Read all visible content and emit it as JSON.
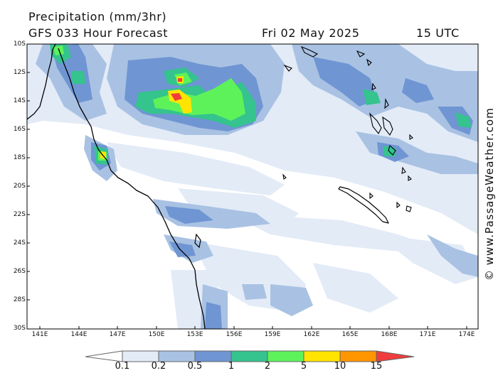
{
  "header": {
    "title": "Precipitation (mm/3hr)",
    "subtitle": "GFS 033 Hour Forecast",
    "date": "Fri 02 May 2025",
    "time": "15 UTC"
  },
  "credit": "© www.PassageWeather.com",
  "axes": {
    "lat_labels": [
      "10S",
      "12S",
      "14S",
      "16S",
      "18S",
      "20S",
      "22S",
      "24S",
      "26S",
      "28S",
      "30S"
    ],
    "lon_labels": [
      "141E",
      "144E",
      "147E",
      "150E",
      "153E",
      "156E",
      "159E",
      "162E",
      "165E",
      "168E",
      "171E",
      "174E"
    ]
  },
  "legend": {
    "labels": [
      "0.1",
      "0.2",
      "0.5",
      "1",
      "2",
      "5",
      "10",
      "15"
    ],
    "colors": [
      "#ffffff",
      "#e3ebf7",
      "#a9c2e3",
      "#6f95d3",
      "#35c38e",
      "#5ef25a",
      "#ffe400",
      "#ff9600",
      "#f03c3c"
    ]
  },
  "colors": {
    "land_outline": "#000000",
    "very_light": "#e3ebf7",
    "light_blue": "#a9c2e3",
    "mid_blue": "#6f95d3",
    "teal": "#35c38e",
    "green": "#5ef25a",
    "yellow": "#ffe400",
    "red": "#f03c3c"
  }
}
